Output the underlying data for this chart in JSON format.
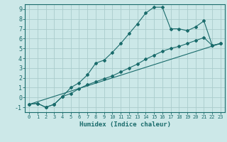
{
  "title": "",
  "xlabel": "Humidex (Indice chaleur)",
  "bg_color": "#cce8e8",
  "grid_color": "#aacccc",
  "line_color": "#1a6b6b",
  "xlim": [
    -0.5,
    23.5
  ],
  "ylim": [
    -1.5,
    9.5
  ],
  "xticks": [
    0,
    1,
    2,
    3,
    4,
    5,
    6,
    7,
    8,
    9,
    10,
    11,
    12,
    13,
    14,
    15,
    16,
    17,
    18,
    19,
    20,
    21,
    22,
    23
  ],
  "yticks": [
    -1,
    0,
    1,
    2,
    3,
    4,
    5,
    6,
    7,
    8,
    9
  ],
  "line1_x": [
    0,
    1,
    2,
    3,
    4,
    5,
    6,
    7,
    8,
    9,
    10,
    11,
    12,
    13,
    14,
    15,
    16,
    17,
    18,
    19,
    20,
    21,
    22,
    23
  ],
  "line1_y": [
    -0.7,
    -0.6,
    -1.0,
    -0.7,
    0.1,
    1.0,
    1.5,
    2.3,
    3.5,
    3.8,
    4.6,
    5.5,
    6.5,
    7.5,
    8.6,
    9.2,
    9.2,
    7.0,
    7.0,
    6.8,
    7.2,
    7.8,
    5.3,
    5.5
  ],
  "line2_x": [
    0,
    1,
    2,
    3,
    4,
    5,
    6,
    7,
    8,
    9,
    10,
    11,
    12,
    13,
    14,
    15,
    16,
    17,
    18,
    19,
    20,
    21,
    22,
    23
  ],
  "line2_y": [
    -0.7,
    -0.6,
    -1.0,
    -0.7,
    0.1,
    0.4,
    0.9,
    1.3,
    1.6,
    1.9,
    2.2,
    2.6,
    3.0,
    3.4,
    3.9,
    4.3,
    4.7,
    5.0,
    5.2,
    5.5,
    5.8,
    6.1,
    5.3,
    5.5
  ],
  "ref_line_x": [
    0,
    23
  ],
  "ref_line_y": [
    -0.7,
    5.5
  ]
}
